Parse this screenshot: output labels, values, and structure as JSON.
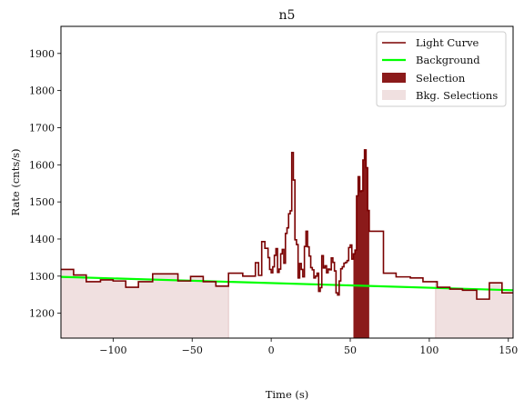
{
  "chart_data": {
    "type": "line",
    "title": "n5",
    "xlabel": "Time (s)",
    "ylabel": "Rate (cnts/s)",
    "xlim": [
      -133,
      153
    ],
    "ylim": [
      1133,
      1973
    ],
    "xticks": [
      -100,
      -50,
      0,
      50,
      100,
      150
    ],
    "xtick_labels": [
      "−100",
      "−50",
      "0",
      "50",
      "100",
      "150"
    ],
    "yticks": [
      1200,
      1300,
      1400,
      1500,
      1600,
      1700,
      1800,
      1900
    ],
    "ytick_labels": [
      "1200",
      "1300",
      "1400",
      "1500",
      "1600",
      "1700",
      "1800",
      "1900"
    ],
    "legend_position": "top-right",
    "legend": [
      "Light Curve",
      "Background",
      "Selection",
      "Bkg. Selections"
    ],
    "colors": {
      "light_curve": "#7a0000",
      "background": "#00ff00",
      "selection": "#8b1a1a",
      "bkg_selection": "#f0e0e0"
    },
    "background_line": {
      "x": [
        -133,
        153
      ],
      "y": [
        1298,
        1262
      ]
    },
    "selection_region": [
      52,
      62
    ],
    "bkg_selection_regions": [
      [
        -133,
        -27
      ],
      [
        104,
        153
      ]
    ],
    "light_curve": {
      "x": [
        -133,
        -125,
        -117,
        -108,
        -100,
        -92,
        -84,
        -75,
        -67,
        -59,
        -51,
        -43,
        -35,
        -27,
        -18,
        -10,
        -8,
        -6,
        -4,
        -2,
        -1,
        0,
        1,
        2,
        3,
        4,
        5,
        6,
        7,
        8,
        9,
        10,
        11,
        12,
        13,
        14,
        15,
        16,
        17,
        18,
        19,
        20,
        21,
        22,
        23,
        24,
        25,
        26,
        27,
        28,
        29,
        30,
        31,
        32,
        33,
        34,
        35,
        36,
        37,
        38,
        39,
        40,
        41,
        42,
        43,
        44,
        45,
        46,
        47,
        48,
        49,
        50,
        51,
        52,
        53,
        54,
        55,
        56,
        57,
        58,
        59,
        60,
        61,
        62,
        71,
        79,
        88,
        96,
        105,
        113,
        121,
        130,
        138,
        146
      ],
      "y": [
        1318,
        1303,
        1285,
        1290,
        1287,
        1270,
        1285,
        1306,
        1306,
        1287,
        1299,
        1285,
        1273,
        1308,
        1300,
        1336,
        1302,
        1393,
        1375,
        1350,
        1318,
        1309,
        1325,
        1356,
        1374,
        1310,
        1319,
        1360,
        1372,
        1335,
        1415,
        1430,
        1468,
        1476,
        1633,
        1559,
        1398,
        1385,
        1295,
        1334,
        1318,
        1298,
        1380,
        1421,
        1379,
        1354,
        1323,
        1317,
        1295,
        1300,
        1308,
        1259,
        1269,
        1355,
        1322,
        1328,
        1309,
        1319,
        1317,
        1349,
        1337,
        1314,
        1255,
        1249,
        1287,
        1320,
        1325,
        1335,
        1337,
        1342,
        1377,
        1384,
        1346,
        1360,
        1370,
        1516,
        1568,
        1528,
        1530,
        1613,
        1640,
        1592,
        1477,
        1421,
        1308,
        1298,
        1295,
        1285,
        1270,
        1265,
        1262,
        1238,
        1282,
        1255
      ]
    }
  }
}
